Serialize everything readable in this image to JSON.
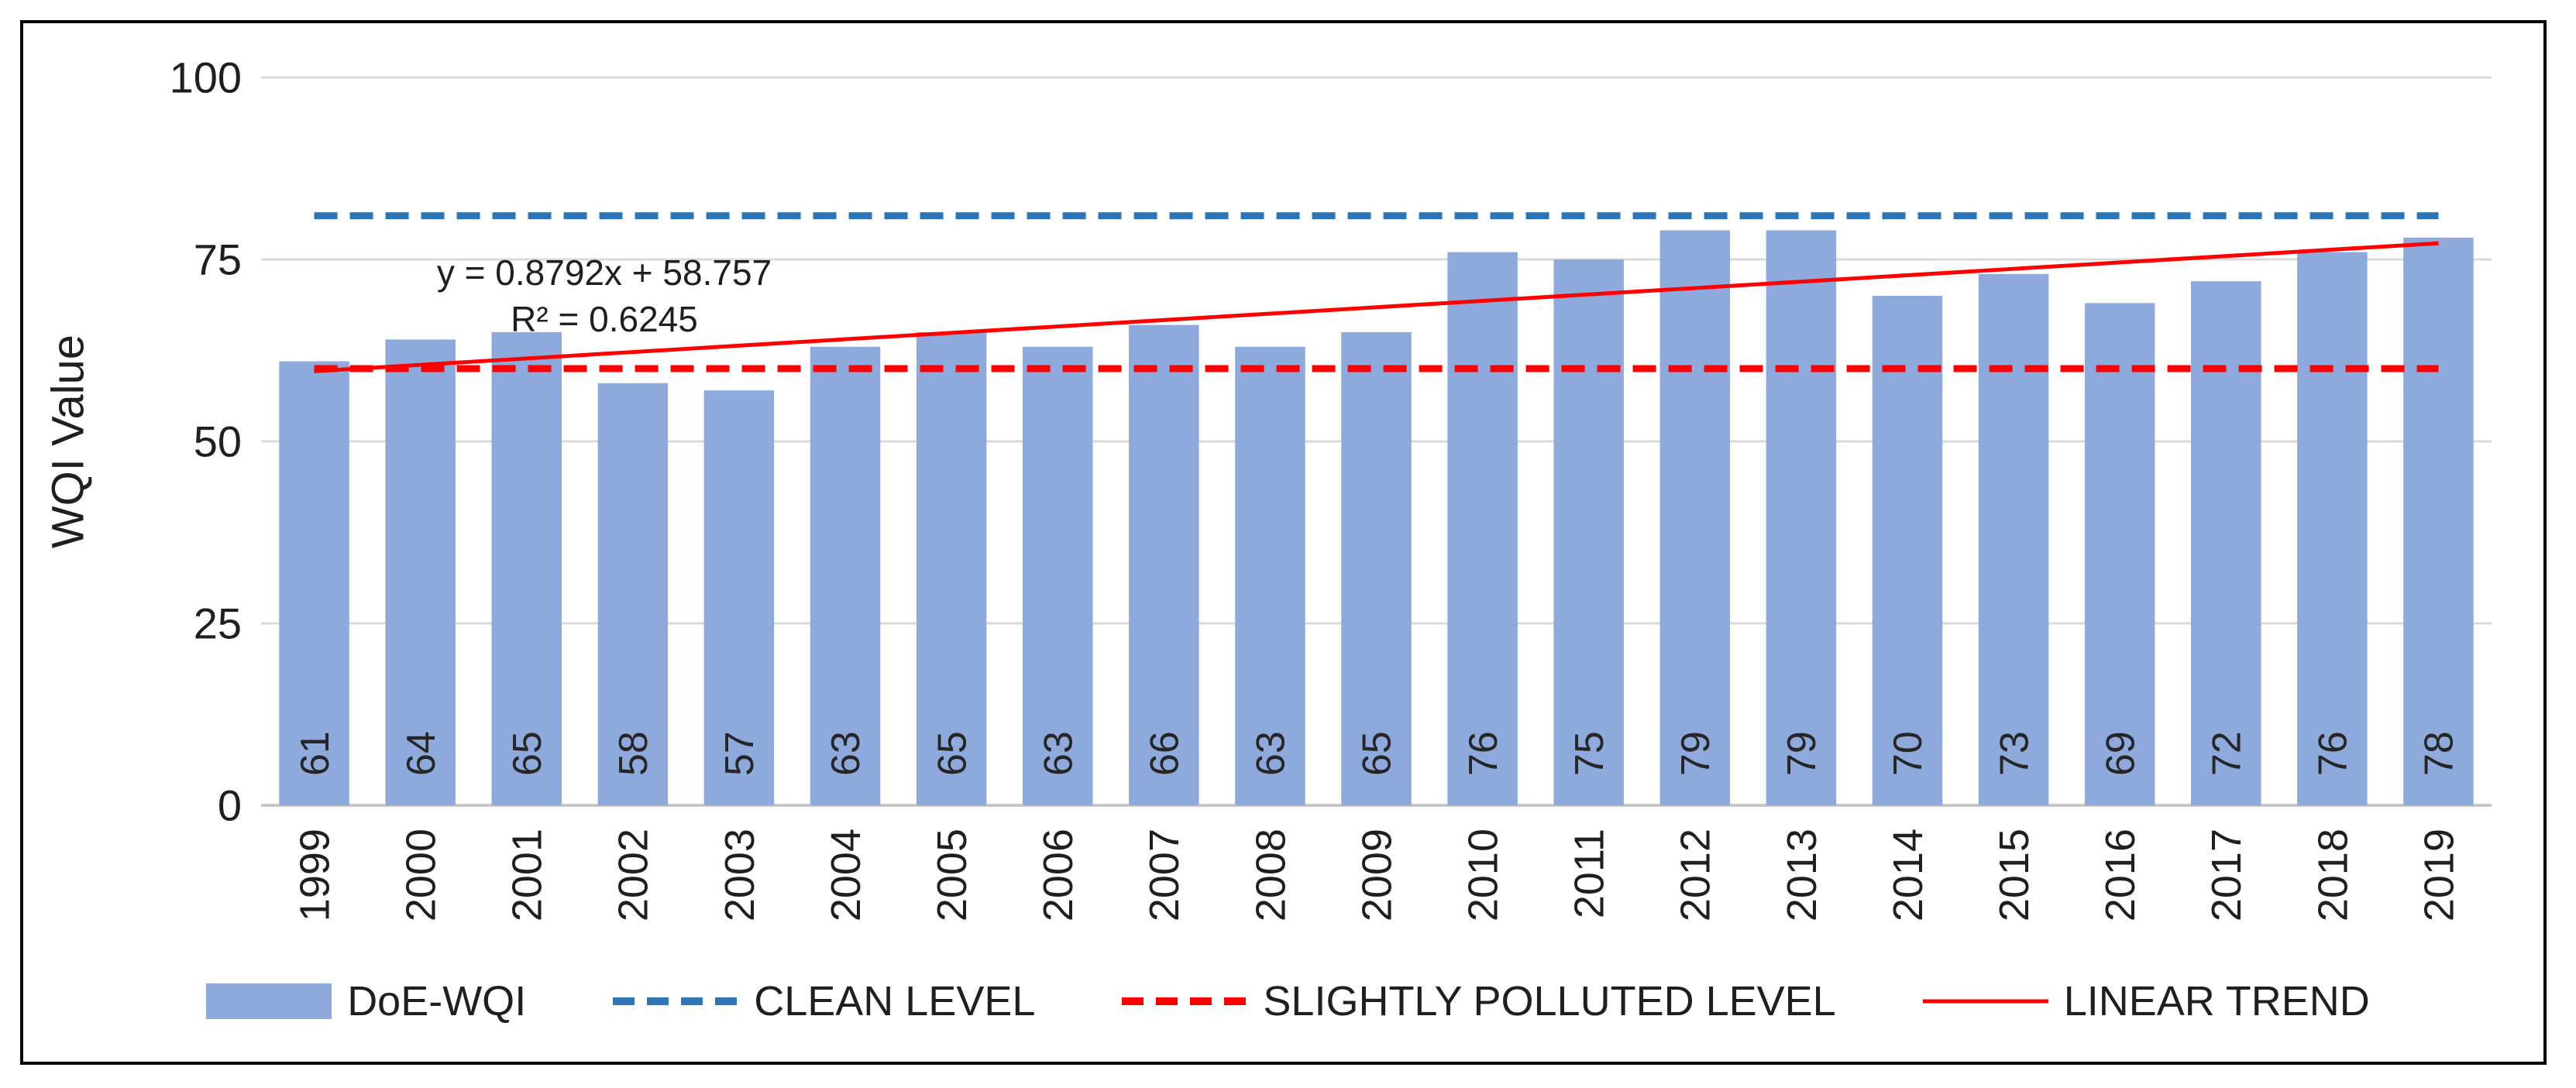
{
  "chart_data": {
    "type": "bar",
    "title": "",
    "ylabel": "WQI Value",
    "xlabel": "",
    "ylim": [
      0,
      100
    ],
    "yticks": [
      "0",
      "25",
      "50",
      "75",
      "100"
    ],
    "grid": true,
    "legend_position": "bottom",
    "categories": [
      "1999",
      "2000",
      "2001",
      "2002",
      "2003",
      "2004",
      "2005",
      "2006",
      "2007",
      "2008",
      "2009",
      "2010",
      "2011",
      "2012",
      "2013",
      "2014",
      "2015",
      "2016",
      "2017",
      "2018",
      "2019"
    ],
    "series": [
      {
        "name": "DoE-WQI",
        "type": "bar",
        "color": "#8ea9db",
        "values": [
          61,
          64,
          65,
          58,
          57,
          63,
          65,
          63,
          66,
          63,
          65,
          76,
          75,
          79,
          79,
          70,
          73,
          69,
          72,
          76,
          78
        ]
      },
      {
        "name": "CLEAN LEVEL",
        "type": "dashed-line",
        "color": "#2e75b6",
        "value": 81
      },
      {
        "name": "SLIGHTLY POLLUTED LEVEL",
        "type": "dashed-line",
        "color": "#ff0000",
        "value": 60
      },
      {
        "name": "LINEAR TREND",
        "type": "trendline",
        "color": "#ff0000",
        "slope": 0.8792,
        "intercept": 58.757,
        "equation_label": "y = 0.8792x + 58.757",
        "r_squared_label": "R² = 0.6245"
      }
    ],
    "colors": {
      "gridline": "#d9d9d9",
      "axis_line": "#c6c6c6",
      "text": "#1f1f1f"
    }
  }
}
